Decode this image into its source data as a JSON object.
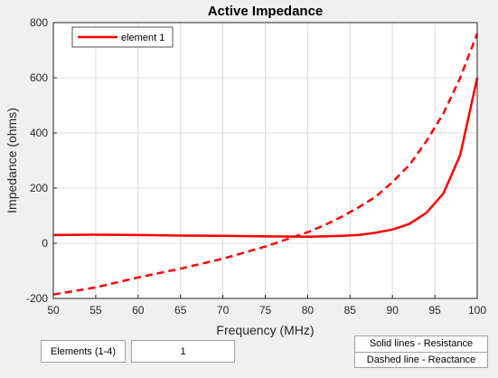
{
  "chart_data": {
    "type": "line",
    "title": "Active Impedance",
    "xlabel": "Frequency (MHz)",
    "ylabel": "Impedance (ohms)",
    "xlim": [
      50,
      100
    ],
    "ylim": [
      -200,
      800
    ],
    "xticks": [
      50,
      55,
      60,
      65,
      70,
      75,
      80,
      85,
      90,
      95,
      100
    ],
    "yticks": [
      -200,
      0,
      200,
      400,
      600,
      800
    ],
    "grid": true,
    "legend_position": "top-left",
    "legend": [
      "element 1"
    ],
    "series": [
      {
        "name": "element 1",
        "quantity": "Resistance",
        "line_style": "solid",
        "color": "#ff0000",
        "x": [
          50,
          55,
          60,
          65,
          70,
          75,
          80,
          82,
          84,
          86,
          88,
          90,
          92,
          94,
          96,
          98,
          100
        ],
        "y": [
          30,
          31,
          30,
          28,
          27,
          25,
          24,
          25,
          27,
          30,
          38,
          50,
          70,
          110,
          180,
          320,
          600
        ]
      },
      {
        "name": "element 1",
        "quantity": "Reactance",
        "line_style": "dashed",
        "color": "#ff0000",
        "x": [
          50,
          55,
          60,
          65,
          70,
          75,
          80,
          82,
          84,
          86,
          88,
          90,
          92,
          94,
          96,
          98,
          100
        ],
        "y": [
          -186,
          -160,
          -124,
          -92,
          -56,
          -12,
          40,
          66,
          96,
          130,
          168,
          222,
          284,
          370,
          470,
          600,
          760
        ]
      }
    ]
  },
  "controls": {
    "elements_label": "Elements (1-4)",
    "elements_value": "1",
    "note_solid": "Solid lines - Resistance",
    "note_dashed": "Dashed line - Reactance"
  }
}
